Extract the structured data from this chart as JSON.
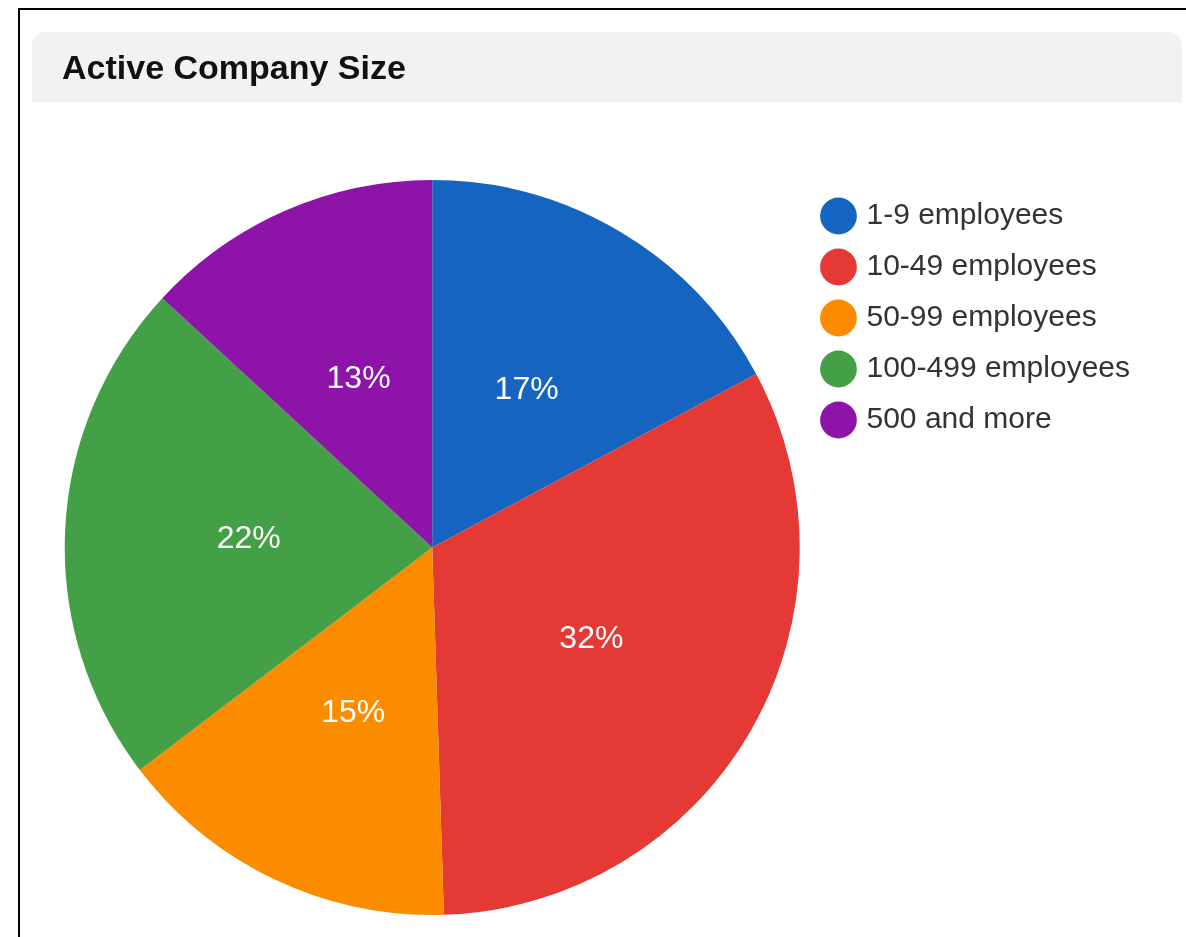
{
  "chart_data": {
    "type": "pie",
    "title": "Active Company Size",
    "categories": [
      "1-9 employees",
      "10-49 employees",
      "50-99 employees",
      "100-499 employees",
      "500 and more"
    ],
    "values": [
      17,
      32,
      15,
      22,
      13
    ],
    "colors": [
      "#1565c0",
      "#e53935",
      "#fb8c00",
      "#43a047",
      "#8e13a8"
    ],
    "value_labels": [
      "17%",
      "32%",
      "15%",
      "22%",
      "13%"
    ],
    "legend": "top right"
  }
}
